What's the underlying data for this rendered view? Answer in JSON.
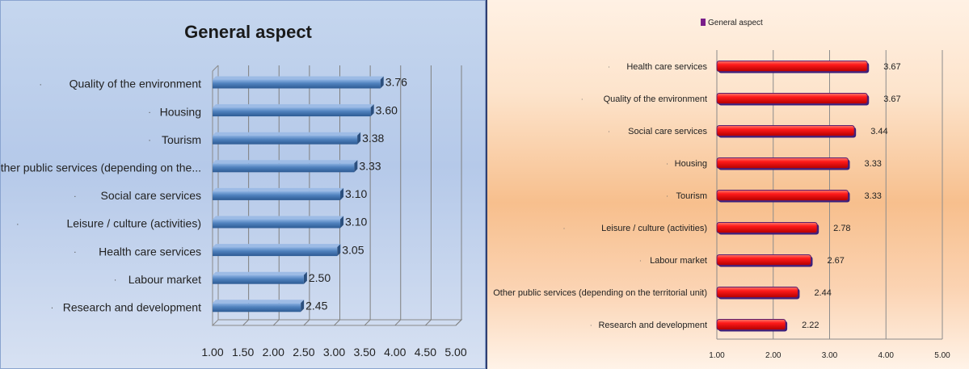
{
  "chart_data": [
    {
      "type": "bar",
      "orientation": "horizontal",
      "title": "General aspect",
      "categories": [
        "Quality of the environment",
        "Housing",
        "Tourism",
        "Other public services (depending on the...",
        "Social care services",
        "Leisure / culture (activities)",
        "Health care services",
        "Labour market",
        "Research and development"
      ],
      "values": [
        3.76,
        3.6,
        3.38,
        3.33,
        3.1,
        3.1,
        3.05,
        2.5,
        2.45
      ],
      "value_labels": [
        "3.76",
        "3.60",
        "3.38",
        "3.33",
        "3.10",
        "3.10",
        "3.05",
        "2.50",
        "2.45"
      ],
      "xlim": [
        1.0,
        5.0
      ],
      "xticks": [
        "1.00",
        "1.50",
        "2.00",
        "2.50",
        "3.00",
        "3.50",
        "4.00",
        "4.50",
        "5.00"
      ],
      "grid": true,
      "bar_color": "#4f81bd"
    },
    {
      "type": "bar",
      "orientation": "horizontal",
      "legend": [
        "General aspect"
      ],
      "legend_position": "top-left",
      "categories": [
        "Health care services",
        "Quality of the environment",
        "Social care services",
        "Housing",
        "Tourism",
        "Leisure / culture (activities)",
        "Labour market",
        "Other public services (depending on the territorial unit)",
        "Research and development"
      ],
      "values": [
        3.67,
        3.67,
        3.44,
        3.33,
        3.33,
        2.78,
        2.67,
        2.44,
        2.22
      ],
      "value_labels": [
        "3.67",
        "3.67",
        "3.44",
        "3.33",
        "3.33",
        "2.78",
        "2.67",
        "2.44",
        "2.22"
      ],
      "xlim": [
        1.0,
        5.0
      ],
      "xticks": [
        "1.00",
        "2.00",
        "3.00",
        "4.00",
        "5.00"
      ],
      "grid": true,
      "bar_color": "#ee1111",
      "legend_marker_color": "#7a1f8a"
    }
  ]
}
